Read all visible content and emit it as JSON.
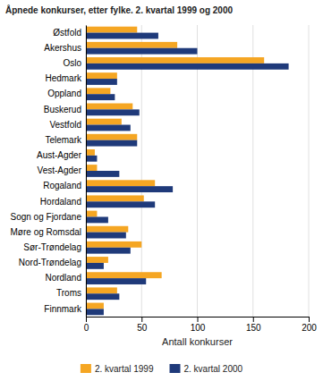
{
  "chart_data": {
    "type": "bar",
    "orientation": "horizontal",
    "title": "Åpnede konkurser, etter fylke. 2. kvartal 1999 og 2000",
    "categories": [
      "Østfold",
      "Akershus",
      "Oslo",
      "Hedmark",
      "Oppland",
      "Buskerud",
      "Vestfold",
      "Telemark",
      "Aust-Agder",
      "Vest-Agder",
      "Rogaland",
      "Hordaland",
      "Sogn og Fjordane",
      "Møre og Romsdal",
      "Sør-Trøndelag",
      "Nord-Trøndelag",
      "Nordland",
      "Troms",
      "Finnmark"
    ],
    "series": [
      {
        "name": "2. kvartal 1999",
        "color": "#f5a623",
        "values": [
          46,
          82,
          160,
          28,
          22,
          42,
          32,
          46,
          8,
          10,
          62,
          52,
          10,
          38,
          50,
          20,
          68,
          28,
          16
        ]
      },
      {
        "name": "2. kvartal 2000",
        "color": "#1f3a7a",
        "values": [
          65,
          100,
          182,
          28,
          26,
          48,
          40,
          46,
          10,
          30,
          78,
          62,
          20,
          36,
          40,
          16,
          54,
          30,
          16
        ]
      }
    ],
    "xlabel": "Antall konkurser",
    "xlim": [
      0,
      200
    ],
    "xticks": [
      0,
      50,
      100,
      150,
      200
    ],
    "grid": true,
    "legend": "bottom"
  }
}
